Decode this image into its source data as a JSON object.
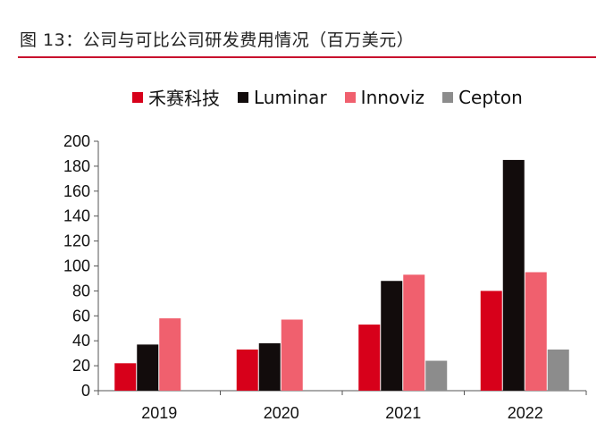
{
  "title": "图 13：公司与可比公司研发费用情况（百万美元）",
  "chart_data": {
    "type": "bar",
    "categories": [
      "2019",
      "2020",
      "2021",
      "2022"
    ],
    "series": [
      {
        "name": "禾赛科技",
        "color": "#d7001a",
        "values": [
          22,
          33,
          53,
          80
        ]
      },
      {
        "name": "Luminar",
        "color": "#120c0c",
        "values": [
          37,
          38,
          88,
          185
        ]
      },
      {
        "name": "Innoviz",
        "color": "#f0606e",
        "values": [
          58,
          57,
          93,
          95
        ]
      },
      {
        "name": "Cepton",
        "color": "#8c8c8c",
        "values": [
          null,
          null,
          24,
          33
        ]
      }
    ],
    "ylim": [
      0,
      200
    ],
    "yticks": [
      0,
      20,
      40,
      60,
      80,
      100,
      120,
      140,
      160,
      180,
      200
    ],
    "grid": false,
    "legend_position": "top"
  }
}
